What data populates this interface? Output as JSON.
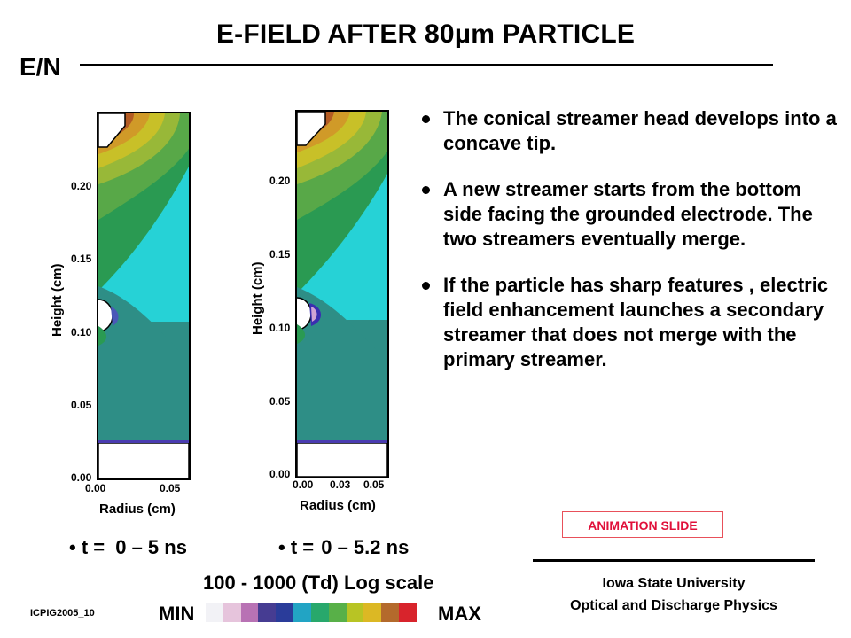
{
  "slide": {
    "title": "E-FIELD AFTER 80μm PARTICLE",
    "quantity_label": "E/N"
  },
  "plots": [
    {
      "y_axis_label": "Height (cm)",
      "y_ticks": [
        "0.20",
        "0.15",
        "0.10",
        "0.05",
        "0.00"
      ],
      "x_axis_label": "Radius (cm)",
      "x_ticks": [
        "0.00",
        "0.05"
      ],
      "time_prefix": "• t =",
      "time_range": "0 – 5 ns"
    },
    {
      "y_axis_label": "Height (cm)",
      "y_ticks": [
        "0.20",
        "0.15",
        "0.10",
        "0.05",
        "0.00"
      ],
      "x_axis_label": "Radius (cm)",
      "x_ticks": [
        "0.00",
        "0.03",
        "0.05"
      ],
      "time_prefix": "• t =",
      "time_range": "0 – 5.2 ns"
    }
  ],
  "bullets": [
    "The conical streamer head develops  into a concave tip.",
    "A new streamer starts from the bottom side facing the grounded electrode. The two streamers eventually merge.",
    "If the particle has sharp features , electric field enhancement launches a secondary streamer that does not merge with the primary streamer."
  ],
  "animation_badge": "ANIMATION SLIDE",
  "scale": {
    "text": "100 - 1000 (Td) Log scale",
    "min_label": "MIN",
    "max_label": "MAX",
    "colors": [
      "#f2f2f6",
      "#e6c4dc",
      "#b872b4",
      "#463c92",
      "#2a3c9a",
      "#22a4c4",
      "#28a86c",
      "#58b048",
      "#b8c424",
      "#dcb824",
      "#b46a2c",
      "#d8242c"
    ]
  },
  "affiliation": {
    "line1": "Iowa State University",
    "line2": "Optical and Discharge Physics"
  },
  "footer_id": "ICPIG2005_10",
  "colors": {
    "streamer_teal": "#2e8e86",
    "background_cyan": "#26d2d6",
    "green": "#2a9a52",
    "badge_red": "#e0103a"
  }
}
